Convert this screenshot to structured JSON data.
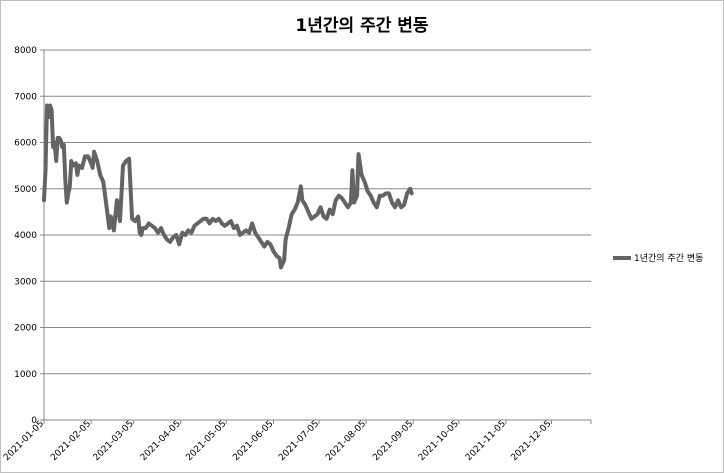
{
  "chart_data": {
    "type": "line",
    "title": "1년간의 주간 변동",
    "xlabel": "",
    "ylabel": "",
    "ylim": [
      0,
      8000
    ],
    "yticks": [
      0,
      1000,
      2000,
      3000,
      4000,
      5000,
      6000,
      7000,
      8000
    ],
    "xlim": [
      "2021-01-05",
      "2021-12-31"
    ],
    "xticks": [
      "2021-01-05",
      "2021-02-05",
      "2021-03-05",
      "2021-04-05",
      "2021-05-05",
      "2021-06-05",
      "2021-07-05",
      "2021-08-05",
      "2021-09-05",
      "2021-10-05",
      "2021-11-05",
      "2021-12-05"
    ],
    "grid": true,
    "legend_position": "right",
    "series": [
      {
        "name": "1년간의 주간 변동",
        "color": "#646464",
        "points": [
          [
            "2021-01-05",
            4750
          ],
          [
            "2021-01-06",
            5400
          ],
          [
            "2021-01-07",
            6800
          ],
          [
            "2021-01-08",
            6550
          ],
          [
            "2021-01-09",
            6800
          ],
          [
            "2021-01-10",
            6700
          ],
          [
            "2021-01-11",
            5900
          ],
          [
            "2021-01-12",
            6000
          ],
          [
            "2021-01-13",
            5600
          ],
          [
            "2021-01-14",
            6100
          ],
          [
            "2021-01-15",
            6100
          ],
          [
            "2021-01-16",
            6050
          ],
          [
            "2021-01-17",
            5900
          ],
          [
            "2021-01-18",
            5950
          ],
          [
            "2021-01-19",
            5200
          ],
          [
            "2021-01-20",
            4700
          ],
          [
            "2021-01-21",
            4900
          ],
          [
            "2021-01-22",
            5050
          ],
          [
            "2021-01-23",
            5600
          ],
          [
            "2021-01-24",
            5500
          ],
          [
            "2021-01-26",
            5550
          ],
          [
            "2021-01-27",
            5300
          ],
          [
            "2021-01-28",
            5500
          ],
          [
            "2021-01-30",
            5450
          ],
          [
            "2021-02-01",
            5700
          ],
          [
            "2021-02-03",
            5700
          ],
          [
            "2021-02-05",
            5550
          ],
          [
            "2021-02-06",
            5450
          ],
          [
            "2021-02-07",
            5800
          ],
          [
            "2021-02-09",
            5600
          ],
          [
            "2021-02-11",
            5300
          ],
          [
            "2021-02-13",
            5150
          ],
          [
            "2021-02-15",
            4650
          ],
          [
            "2021-02-17",
            4150
          ],
          [
            "2021-02-18",
            4400
          ],
          [
            "2021-02-20",
            4100
          ],
          [
            "2021-02-22",
            4750
          ],
          [
            "2021-02-24",
            4300
          ],
          [
            "2021-02-26",
            5500
          ],
          [
            "2021-02-28",
            5600
          ],
          [
            "2021-03-02",
            5650
          ],
          [
            "2021-03-04",
            4350
          ],
          [
            "2021-03-06",
            4300
          ],
          [
            "2021-03-08",
            4400
          ],
          [
            "2021-03-09",
            4050
          ],
          [
            "2021-03-10",
            4000
          ],
          [
            "2021-03-11",
            4150
          ],
          [
            "2021-03-13",
            4150
          ],
          [
            "2021-03-15",
            4250
          ],
          [
            "2021-03-17",
            4200
          ],
          [
            "2021-03-19",
            4150
          ],
          [
            "2021-03-21",
            4050
          ],
          [
            "2021-03-23",
            4150
          ],
          [
            "2021-03-25",
            4000
          ],
          [
            "2021-03-27",
            3900
          ],
          [
            "2021-03-29",
            3850
          ],
          [
            "2021-03-31",
            3950
          ],
          [
            "2021-04-02",
            4000
          ],
          [
            "2021-04-04",
            3800
          ],
          [
            "2021-04-06",
            4050
          ],
          [
            "2021-04-08",
            4000
          ],
          [
            "2021-04-10",
            4100
          ],
          [
            "2021-04-12",
            4050
          ],
          [
            "2021-04-14",
            4200
          ],
          [
            "2021-04-16",
            4250
          ],
          [
            "2021-04-18",
            4300
          ],
          [
            "2021-04-20",
            4350
          ],
          [
            "2021-04-22",
            4350
          ],
          [
            "2021-04-24",
            4250
          ],
          [
            "2021-04-26",
            4350
          ],
          [
            "2021-04-28",
            4300
          ],
          [
            "2021-04-30",
            4350
          ],
          [
            "2021-05-02",
            4250
          ],
          [
            "2021-05-04",
            4200
          ],
          [
            "2021-05-06",
            4250
          ],
          [
            "2021-05-08",
            4300
          ],
          [
            "2021-05-10",
            4150
          ],
          [
            "2021-05-12",
            4200
          ],
          [
            "2021-05-14",
            4000
          ],
          [
            "2021-05-16",
            4050
          ],
          [
            "2021-05-18",
            4100
          ],
          [
            "2021-05-20",
            4050
          ],
          [
            "2021-05-22",
            4250
          ],
          [
            "2021-05-24",
            4050
          ],
          [
            "2021-05-26",
            3950
          ],
          [
            "2021-05-28",
            3850
          ],
          [
            "2021-05-30",
            3750
          ],
          [
            "2021-06-01",
            3850
          ],
          [
            "2021-06-03",
            3800
          ],
          [
            "2021-06-05",
            3650
          ],
          [
            "2021-06-07",
            3550
          ],
          [
            "2021-06-09",
            3500
          ],
          [
            "2021-06-10",
            3300
          ],
          [
            "2021-06-12",
            3450
          ],
          [
            "2021-06-13",
            3900
          ],
          [
            "2021-06-15",
            4150
          ],
          [
            "2021-06-17",
            4450
          ],
          [
            "2021-06-19",
            4550
          ],
          [
            "2021-06-21",
            4700
          ],
          [
            "2021-06-23",
            5050
          ],
          [
            "2021-06-24",
            4750
          ],
          [
            "2021-06-26",
            4650
          ],
          [
            "2021-06-28",
            4500
          ],
          [
            "2021-06-30",
            4350
          ],
          [
            "2021-07-02",
            4400
          ],
          [
            "2021-07-04",
            4450
          ],
          [
            "2021-07-06",
            4600
          ],
          [
            "2021-07-08",
            4400
          ],
          [
            "2021-07-10",
            4350
          ],
          [
            "2021-07-12",
            4550
          ],
          [
            "2021-07-14",
            4450
          ],
          [
            "2021-07-16",
            4750
          ],
          [
            "2021-07-18",
            4850
          ],
          [
            "2021-07-20",
            4800
          ],
          [
            "2021-07-22",
            4700
          ],
          [
            "2021-07-24",
            4600
          ],
          [
            "2021-07-26",
            4700
          ],
          [
            "2021-07-27",
            5400
          ],
          [
            "2021-07-28",
            4700
          ],
          [
            "2021-07-30",
            4850
          ],
          [
            "2021-07-31",
            5750
          ],
          [
            "2021-08-02",
            5300
          ],
          [
            "2021-08-04",
            5150
          ],
          [
            "2021-08-06",
            4950
          ],
          [
            "2021-08-08",
            4850
          ],
          [
            "2021-08-10",
            4700
          ],
          [
            "2021-08-12",
            4600
          ],
          [
            "2021-08-14",
            4850
          ],
          [
            "2021-08-16",
            4850
          ],
          [
            "2021-08-18",
            4900
          ],
          [
            "2021-08-20",
            4900
          ],
          [
            "2021-08-22",
            4700
          ],
          [
            "2021-08-24",
            4600
          ],
          [
            "2021-08-26",
            4750
          ],
          [
            "2021-08-28",
            4600
          ],
          [
            "2021-08-30",
            4650
          ],
          [
            "2021-09-01",
            4900
          ],
          [
            "2021-09-03",
            5000
          ],
          [
            "2021-09-04",
            4900
          ]
        ]
      }
    ]
  }
}
